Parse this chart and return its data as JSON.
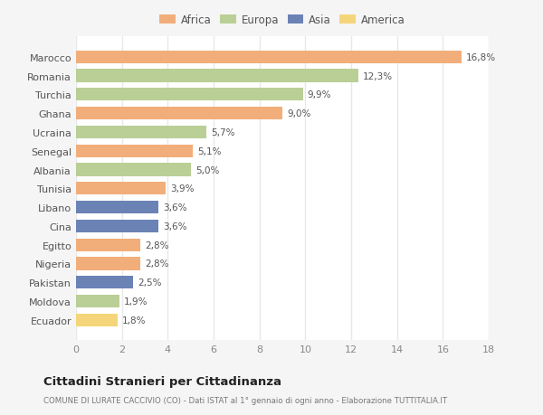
{
  "countries": [
    "Marocco",
    "Romania",
    "Turchia",
    "Ghana",
    "Ucraina",
    "Senegal",
    "Albania",
    "Tunisia",
    "Libano",
    "Cina",
    "Egitto",
    "Nigeria",
    "Pakistan",
    "Moldova",
    "Ecuador"
  ],
  "values": [
    16.8,
    12.3,
    9.9,
    9.0,
    5.7,
    5.1,
    5.0,
    3.9,
    3.6,
    3.6,
    2.8,
    2.8,
    2.5,
    1.9,
    1.8
  ],
  "labels": [
    "16,8%",
    "12,3%",
    "9,9%",
    "9,0%",
    "5,7%",
    "5,1%",
    "5,0%",
    "3,9%",
    "3,6%",
    "3,6%",
    "2,8%",
    "2,8%",
    "2,5%",
    "1,9%",
    "1,8%"
  ],
  "continents": [
    "Africa",
    "Europa",
    "Europa",
    "Africa",
    "Europa",
    "Africa",
    "Europa",
    "Africa",
    "Asia",
    "Asia",
    "Africa",
    "Africa",
    "Asia",
    "Europa",
    "America"
  ],
  "colors": {
    "Africa": "#F2AE7A",
    "Europa": "#BACF96",
    "Asia": "#6B82B5",
    "America": "#F5D57A"
  },
  "legend_order": [
    "Africa",
    "Europa",
    "Asia",
    "America"
  ],
  "title": "Cittadini Stranieri per Cittadinanza",
  "subtitle": "COMUNE DI LURATE CACCIVIO (CO) - Dati ISTAT al 1° gennaio di ogni anno - Elaborazione TUTTITALIA.IT",
  "xlim": [
    0,
    18
  ],
  "xticks": [
    0,
    2,
    4,
    6,
    8,
    10,
    12,
    14,
    16,
    18
  ],
  "plot_bg": "#ffffff",
  "fig_bg": "#f5f5f5",
  "grid_color": "#e8e8e8",
  "bar_height": 0.68
}
